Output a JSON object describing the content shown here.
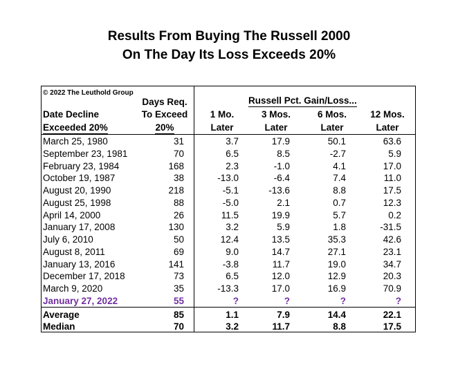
{
  "title_line1": "Results From Buying The Russell 2000",
  "title_line2": "On The Day Its Loss Exceeds 20%",
  "chart_data": {
    "type": "table",
    "copyright": "© 2022 The Leuthold Group",
    "group_header": "Russell Pct. Gain/Loss...",
    "headers": {
      "date": [
        "",
        "Date Decline",
        "Exceeded 20%"
      ],
      "days": [
        "Days Req.",
        "To Exceed",
        "20%"
      ],
      "m1": [
        "1 Mo.",
        "Later"
      ],
      "m3": [
        "3 Mos.",
        "Later"
      ],
      "m6": [
        "6 Mos.",
        "Later"
      ],
      "m12": [
        "12 Mos.",
        "Later"
      ]
    },
    "rows": [
      {
        "date": "March 25, 1980",
        "days": "31",
        "m1": "3.7",
        "m3": "17.9",
        "m6": "50.1",
        "m12": "63.6"
      },
      {
        "date": "September 23, 1981",
        "days": "70",
        "m1": "6.5",
        "m3": "8.5",
        "m6": "-2.7",
        "m12": "5.9"
      },
      {
        "date": "February 23, 1984",
        "days": "168",
        "m1": "2.3",
        "m3": "-1.0",
        "m6": "4.1",
        "m12": "17.0"
      },
      {
        "date": "October 19, 1987",
        "days": "38",
        "m1": "-13.0",
        "m3": "-6.4",
        "m6": "7.4",
        "m12": "11.0"
      },
      {
        "date": "August 20, 1990",
        "days": "218",
        "m1": "-5.1",
        "m3": "-13.6",
        "m6": "8.8",
        "m12": "17.5"
      },
      {
        "date": "August 25, 1998",
        "days": "88",
        "m1": "-5.0",
        "m3": "2.1",
        "m6": "0.7",
        "m12": "12.3"
      },
      {
        "date": "April 14, 2000",
        "days": "26",
        "m1": "11.5",
        "m3": "19.9",
        "m6": "5.7",
        "m12": "0.2"
      },
      {
        "date": "January 17, 2008",
        "days": "130",
        "m1": "3.2",
        "m3": "5.9",
        "m6": "1.8",
        "m12": "-31.5"
      },
      {
        "date": "July 6, 2010",
        "days": "50",
        "m1": "12.4",
        "m3": "13.5",
        "m6": "35.3",
        "m12": "42.6"
      },
      {
        "date": "August 8, 2011",
        "days": "69",
        "m1": "9.0",
        "m3": "14.7",
        "m6": "27.1",
        "m12": "23.1"
      },
      {
        "date": "January 13, 2016",
        "days": "141",
        "m1": "-3.8",
        "m3": "11.7",
        "m6": "19.0",
        "m12": "34.7"
      },
      {
        "date": "December 17, 2018",
        "days": "73",
        "m1": "6.5",
        "m3": "12.0",
        "m6": "12.9",
        "m12": "20.3"
      },
      {
        "date": "March 9, 2020",
        "days": "35",
        "m1": "-13.3",
        "m3": "17.0",
        "m6": "16.9",
        "m12": "70.9"
      }
    ],
    "current_row": {
      "date": "January 27, 2022",
      "days": "55",
      "m1": "?",
      "m3": "?",
      "m6": "?",
      "m12": "?"
    },
    "summary_rows": [
      {
        "date": "Average",
        "days": "85",
        "m1": "1.1",
        "m3": "7.9",
        "m6": "14.4",
        "m12": "22.1"
      },
      {
        "date": "Median",
        "days": "70",
        "m1": "3.2",
        "m3": "11.7",
        "m6": "8.8",
        "m12": "17.5"
      }
    ],
    "colors": {
      "highlight": "#7030a0",
      "text": "#000000"
    }
  }
}
